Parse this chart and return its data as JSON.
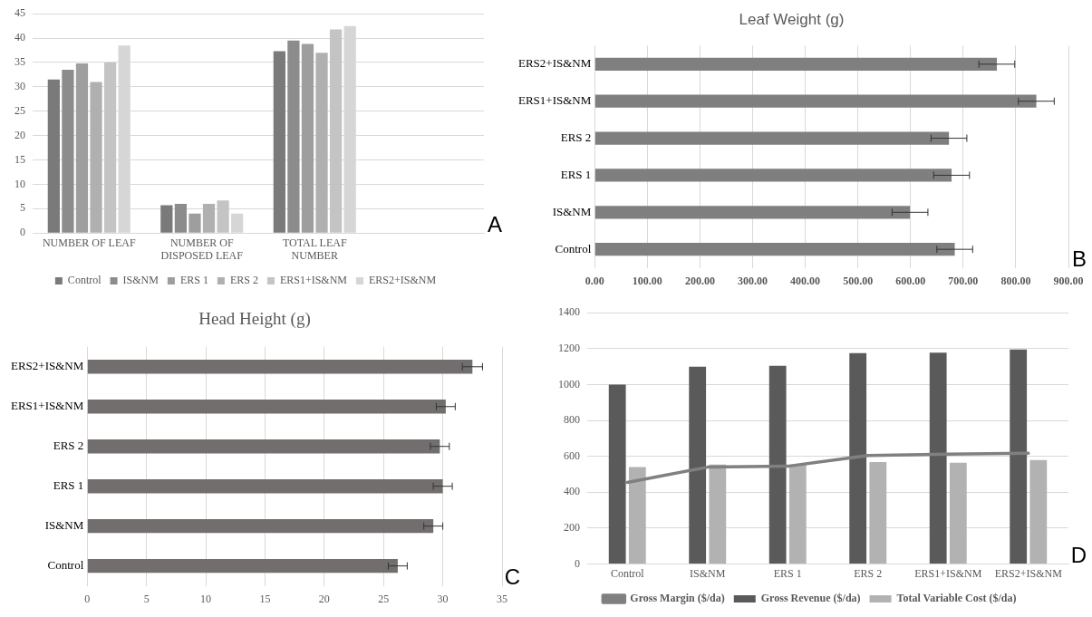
{
  "chart_data": [
    {
      "type": "bar",
      "categories": [
        "NUMBER OF LEAF",
        "NUMBER OF DISPOSED LEAF",
        "TOTAL LEAF NUMBER",
        null
      ],
      "series": [
        {
          "name": "Control",
          "color": "#7a7a7a",
          "values": [
            31.5,
            5.7,
            37.3,
            null
          ]
        },
        {
          "name": "IS&NM",
          "color": "#8c8c8c",
          "values": [
            33.5,
            6,
            39.5,
            null
          ]
        },
        {
          "name": "ERS 1",
          "color": "#9e9e9e",
          "values": [
            34.8,
            4,
            38.8,
            null
          ]
        },
        {
          "name": "ERS 2",
          "color": "#b0b0b0",
          "values": [
            31,
            6,
            37,
            null
          ]
        },
        {
          "name": "ERS1+IS&NM",
          "color": "#c4c4c4",
          "values": [
            35,
            6.7,
            41.8,
            null
          ]
        },
        {
          "name": "ERS2+IS&NM",
          "color": "#d6d6d6",
          "values": [
            38.5,
            4,
            42.5,
            null
          ]
        }
      ],
      "ylim": [
        0,
        45
      ],
      "yticks": [
        0,
        5,
        10,
        15,
        20,
        25,
        30,
        35,
        40,
        45
      ],
      "grid": "y",
      "legend": "bottom",
      "annotations": [
        "A"
      ]
    },
    {
      "type": "bar",
      "orientation": "horizontal",
      "title": "Leaf Weight (g)",
      "categories": [
        "ERS2+IS&NM",
        "ERS1+IS&NM",
        "ERS 2",
        "ERS 1",
        "IS&NM",
        "Control"
      ],
      "color": "#7f7f7f",
      "values": [
        764,
        839,
        673,
        678,
        599,
        684
      ],
      "errors": [
        34,
        34,
        34,
        34,
        34,
        34
      ],
      "xlim": [
        0,
        900
      ],
      "xticks": [
        {
          "value": 0,
          "label": "0.00"
        },
        {
          "value": 100,
          "label": "100.00"
        },
        {
          "value": 200,
          "label": "200.00"
        },
        {
          "value": 300,
          "label": "300.00"
        },
        {
          "value": 400,
          "label": "400.00"
        },
        {
          "value": 500,
          "label": "500.00"
        },
        {
          "value": 600,
          "label": "600.00"
        },
        {
          "value": 700,
          "label": "700.00"
        },
        {
          "value": 800,
          "label": "800.00"
        },
        {
          "value": 900,
          "label": "900.00"
        }
      ],
      "grid": "x",
      "annotations": [
        "B"
      ]
    },
    {
      "type": "bar",
      "orientation": "horizontal",
      "title": "Head Height (g)",
      "categories": [
        "ERS2+IS&NM",
        "ERS1+IS&NM",
        "ERS 2",
        "ERS 1",
        "IS&NM",
        "Control"
      ],
      "color": "#726e6e",
      "values": [
        32.5,
        30.25,
        29.75,
        30,
        29.2,
        26.2
      ],
      "errors": [
        0.85,
        0.8,
        0.8,
        0.8,
        0.8,
        0.8
      ],
      "xlim": [
        0,
        35
      ],
      "xticks": [
        0,
        5,
        10,
        15,
        20,
        25,
        30,
        35
      ],
      "grid": "x",
      "annotations": [
        "C"
      ]
    },
    {
      "type": "bar",
      "categories": [
        "Control",
        "IS&NM",
        "ERS 1",
        "ERS 2",
        "ERS1+IS&NM",
        "ERS2+IS&NM"
      ],
      "series": [
        {
          "name": "Gross Revenue ($/da)",
          "color": "#5a5a5a",
          "values": [
            1000,
            1100,
            1105,
            1175,
            1178,
            1195
          ]
        },
        {
          "name": "Total Variable Cost ($/da)",
          "color": "#b2b2b2",
          "values": [
            540,
            555,
            555,
            568,
            565,
            580
          ]
        },
        {
          "name": "Gross Margin ($/da)",
          "type": "line",
          "color": "#808080",
          "values": [
            455,
            540,
            545,
            605,
            612,
            617
          ]
        }
      ],
      "ylim": [
        0,
        1400
      ],
      "yticks": [
        0,
        200,
        400,
        600,
        800,
        1000,
        1200,
        1400
      ],
      "grid": "y",
      "legend": "bottom",
      "annotations": [
        "D"
      ]
    }
  ]
}
